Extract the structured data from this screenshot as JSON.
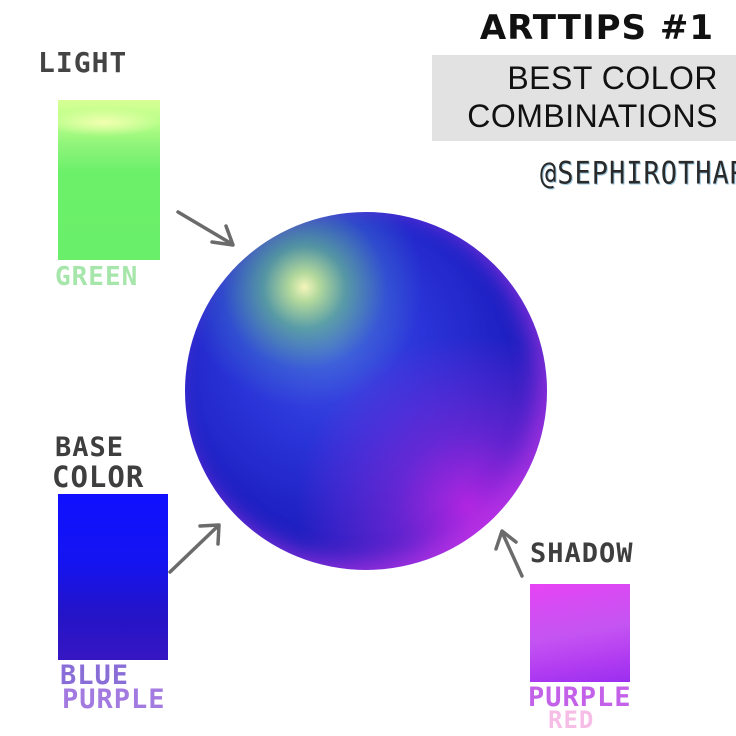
{
  "header": {
    "title": "ARTTIPS #1",
    "subtitle_line1": "BEST COLOR",
    "subtitle_line2": "COMBINATIONS",
    "handle": "@SEPHIROTHART"
  },
  "labels": {
    "light": "LIGHT",
    "base_line1": "BASE",
    "base_line2": "COLOR",
    "shadow": "SHADOW"
  },
  "swatches": {
    "light": {
      "name": "GREEN",
      "color": "#6aef6a"
    },
    "base": {
      "name_line1": "BLUE",
      "name_line2": "PURPLE",
      "color": "#1a14e0"
    },
    "shadow": {
      "name_line1": "PURPLE",
      "name_line2": "RED",
      "color": "#c454f2"
    }
  },
  "sphere": {
    "base": "#2a34d8",
    "highlight": "#e6ff9a",
    "shadow": "#c43ae8"
  }
}
